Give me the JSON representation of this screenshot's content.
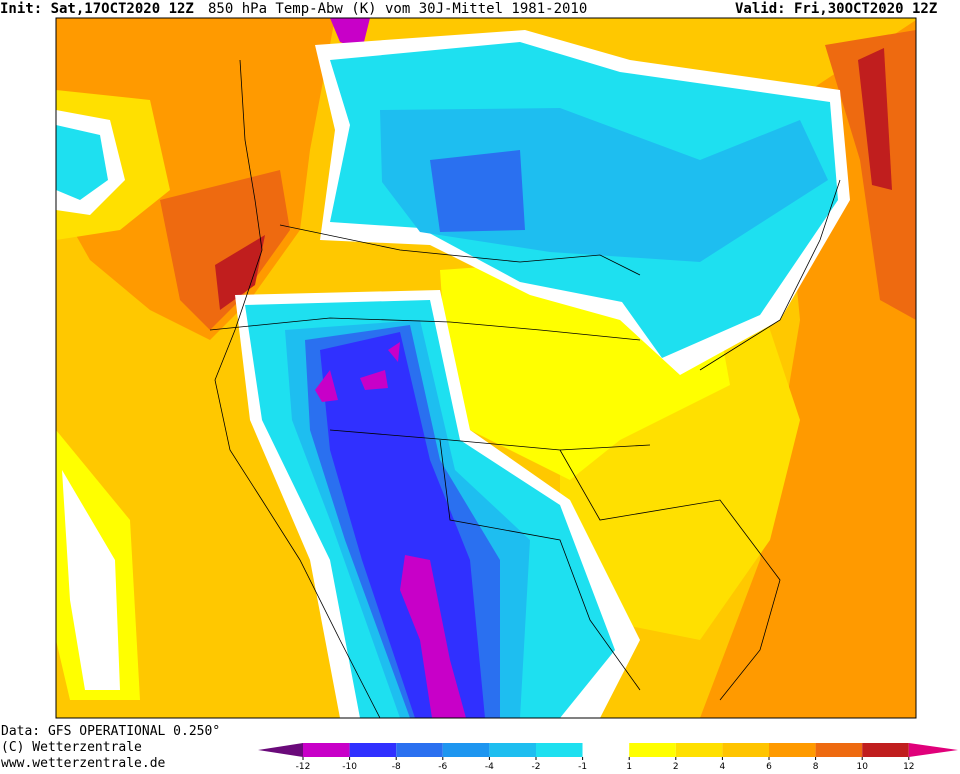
{
  "header": {
    "init": "Init: Sat,17OCT2020 12Z",
    "title": "850 hPa Temp-Abw (K) vom 30J-Mittel 1981-2010",
    "valid": "Valid: Fri,30OCT2020 12Z"
  },
  "footer": {
    "source": "Data: GFS OPERATIONAL 0.250°",
    "copyright": "(C) Wetterzentrale",
    "url": "www.wetterzentrale.de"
  },
  "colorbar": {
    "ticks": [
      -12,
      -10,
      -8,
      -6,
      -4,
      -2,
      -1,
      1,
      2,
      4,
      6,
      8,
      10,
      12
    ],
    "colors": [
      "#6a0a7a",
      "#c800c8",
      "#3030ff",
      "#2a70f0",
      "#1e96f0",
      "#1ebef0",
      "#1ee0f0",
      "#ffffff",
      "#ffff00",
      "#ffe000",
      "#ffc400",
      "#ff9a00",
      "#ee6a10",
      "#c01e1e",
      "#e0007a"
    ]
  }
}
